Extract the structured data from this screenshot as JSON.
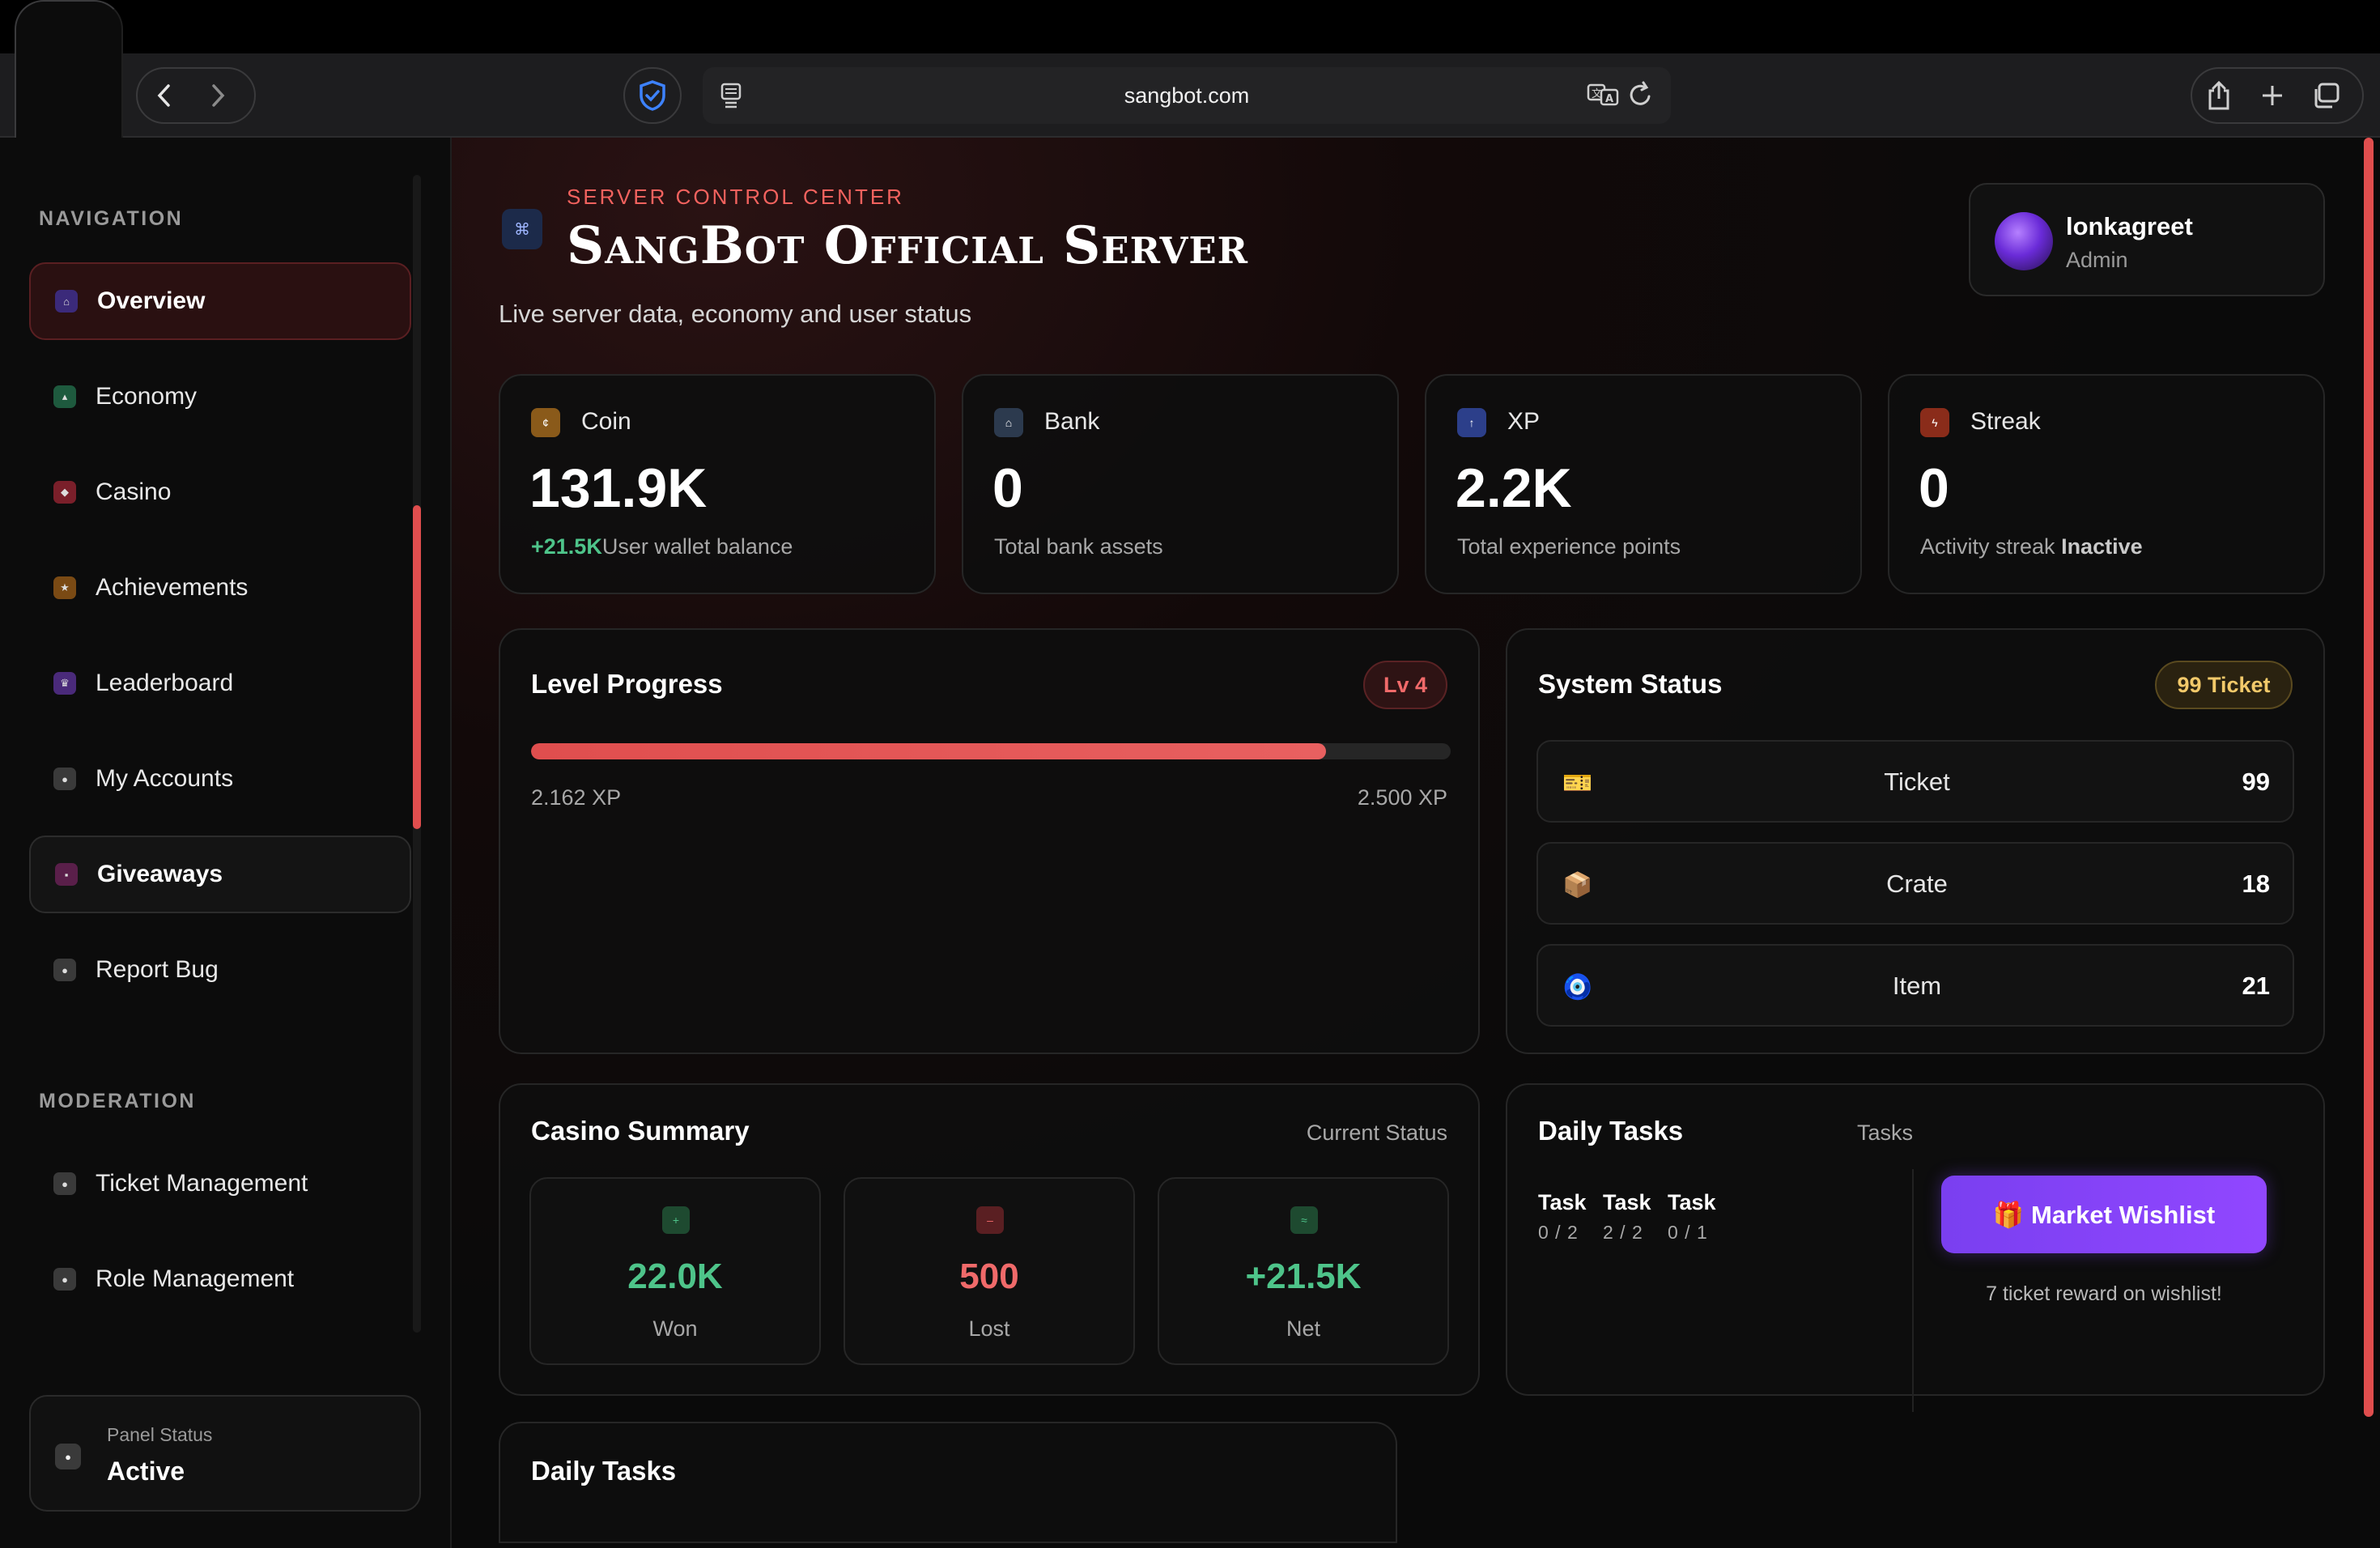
{
  "browser": {
    "url": "sangbot.com"
  },
  "sidebar": {
    "navigation_label": "NAVIGATION",
    "moderation_label": "MODERATION",
    "nav_items": [
      {
        "label": "Overview",
        "icon": "home-icon",
        "color": "#3b2a7a"
      },
      {
        "label": "Economy",
        "icon": "chart-icon",
        "color": "#1e5a3e"
      },
      {
        "label": "Casino",
        "icon": "dice-icon",
        "color": "#7a1f2a"
      },
      {
        "label": "Achievements",
        "icon": "star-icon",
        "color": "#7a4a14"
      },
      {
        "label": "Leaderboard",
        "icon": "trophy-icon",
        "color": "#4a2a7a"
      },
      {
        "label": "My Accounts",
        "icon": "user-icon",
        "color": "#3a3a3a"
      },
      {
        "label": "Giveaways",
        "icon": "gift-icon",
        "color": "#5a1f4a"
      },
      {
        "label": "Report Bug",
        "icon": "bug-icon",
        "color": "#3a3a3a"
      }
    ],
    "moderation_items": [
      {
        "label": "Ticket Management",
        "icon": "ticket-icon"
      },
      {
        "label": "Role Management",
        "icon": "shield-icon"
      }
    ],
    "panel_status": {
      "label": "Panel Status",
      "value": "Active"
    }
  },
  "header": {
    "eyebrow": "SERVER CONTROL CENTER",
    "title": "SangBot Official Server",
    "subtitle": "Live server data, economy and user status"
  },
  "user": {
    "name": "lonkagreet",
    "role": "Admin"
  },
  "stats": [
    {
      "label": "Coin",
      "value": "131.9K",
      "delta": "+21.5K",
      "desc": "User wallet balance",
      "color": "#8a5a1a"
    },
    {
      "label": "Bank",
      "value": "0",
      "desc": "Total bank assets",
      "color": "#2c3a4e"
    },
    {
      "label": "XP",
      "value": "2.2K",
      "desc": "Total experience points",
      "color": "#2c3f8a"
    },
    {
      "label": "Streak",
      "value": "0",
      "desc": "Activity streak",
      "status": "Inactive",
      "color": "#8a2c1a"
    }
  ],
  "level": {
    "title": "Level Progress",
    "badge": "Lv 4",
    "current": "2.162 XP",
    "max": "2.500 XP",
    "progress": 0.8648
  },
  "system": {
    "title": "System Status",
    "badge": "99 Ticket",
    "rows": [
      {
        "icon": "ticket-icon",
        "emoji": "🎫",
        "name": "Ticket",
        "count": "99"
      },
      {
        "icon": "crate-icon",
        "emoji": "📦",
        "name": "Crate",
        "count": "18"
      },
      {
        "icon": "eye-charm-icon",
        "emoji": "🧿",
        "name": "Item",
        "count": "21"
      }
    ]
  },
  "casino": {
    "title": "Casino Summary",
    "status": "Current Status",
    "boxes": [
      {
        "value": "22.0K",
        "label": "Won",
        "color": "#4ec48a",
        "icon_bg": "#1e4a30",
        "glyph": "+"
      },
      {
        "value": "500",
        "label": "Lost",
        "color": "#f06a6a",
        "icon_bg": "#5a1f22",
        "glyph": "–"
      },
      {
        "value": "+21.5K",
        "label": "Net",
        "color": "#4ec48a",
        "icon_bg": "#1e4a30",
        "glyph": "≈"
      }
    ]
  },
  "daily": {
    "title": "Daily Tasks",
    "tasks_label": "Tasks",
    "tasks": [
      {
        "name": "Task",
        "progress": "0 / 2"
      },
      {
        "name": "Task",
        "progress": "2 / 2"
      },
      {
        "name": "Task",
        "progress": "0 / 1"
      }
    ],
    "wishlist_button": "🎁 Market Wishlist",
    "wishlist_note": "7 ticket reward on wishlist!"
  },
  "daily_bottom": {
    "title": "Daily Tasks"
  }
}
